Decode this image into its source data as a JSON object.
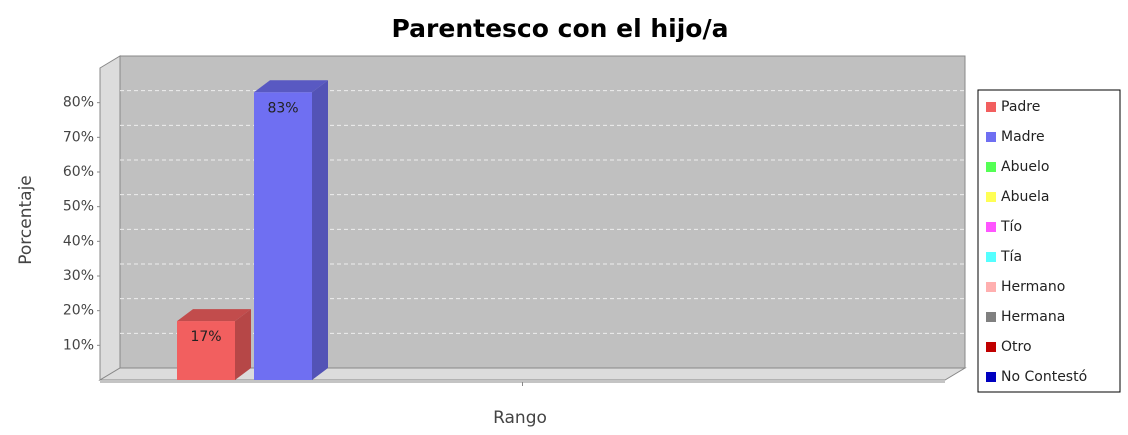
{
  "chart_data": {
    "type": "bar3d",
    "title": "Parentesco con el hijo/a",
    "x_label": "Rango",
    "y_label": "Porcentaje",
    "categories": [
      null
    ],
    "series": [
      {
        "name": "Padre",
        "color": "#f25f5f",
        "values": [
          17
        ],
        "value_labels": [
          "17%"
        ]
      },
      {
        "name": "Madre",
        "color": "#6f6ff2",
        "values": [
          83
        ],
        "value_labels": [
          "83%"
        ]
      },
      {
        "name": "Abuelo",
        "color": "#55ff55",
        "values": [
          null
        ]
      },
      {
        "name": "Abuela",
        "color": "#ffff55",
        "values": [
          null
        ]
      },
      {
        "name": "Tío",
        "color": "#ff55ff",
        "values": [
          null
        ]
      },
      {
        "name": "Tía",
        "color": "#55ffff",
        "values": [
          null
        ]
      },
      {
        "name": "Hermano",
        "color": "#ffafaf",
        "values": [
          null
        ]
      },
      {
        "name": "Hermana",
        "color": "#808080",
        "values": [
          null
        ]
      },
      {
        "name": "Otro",
        "color": "#c00000",
        "values": [
          null
        ]
      },
      {
        "name": "No Contestó",
        "color": "#0000c0",
        "values": [
          null
        ]
      }
    ],
    "ylim": [
      0,
      90
    ],
    "yticks": [
      {
        "value": 10,
        "label": "10%"
      },
      {
        "value": 20,
        "label": "20%"
      },
      {
        "value": 30,
        "label": "30%"
      },
      {
        "value": 40,
        "label": "40%"
      },
      {
        "value": 50,
        "label": "50%"
      },
      {
        "value": 60,
        "label": "60%"
      },
      {
        "value": 70,
        "label": "70%"
      },
      {
        "value": 80,
        "label": "80%"
      }
    ],
    "grid": true,
    "legend": "right"
  }
}
